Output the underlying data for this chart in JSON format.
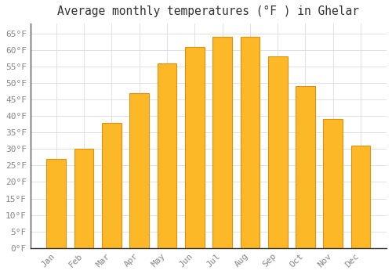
{
  "title": "Average monthly temperatures (°F ) in Ghelar",
  "months": [
    "Jan",
    "Feb",
    "Mar",
    "Apr",
    "May",
    "Jun",
    "Jul",
    "Aug",
    "Sep",
    "Oct",
    "Nov",
    "Dec"
  ],
  "values": [
    27,
    30,
    38,
    47,
    56,
    61,
    64,
    64,
    58,
    49,
    39,
    31
  ],
  "bar_color": "#FDB827",
  "bar_edge_color": "#E09010",
  "background_color": "#FFFFFF",
  "grid_color": "#DCDCDC",
  "ylim": [
    0,
    68
  ],
  "yticks": [
    0,
    5,
    10,
    15,
    20,
    25,
    30,
    35,
    40,
    45,
    50,
    55,
    60,
    65
  ],
  "ylabel_format": "°F",
  "title_fontsize": 10.5,
  "tick_fontsize": 8,
  "font_family": "monospace",
  "tick_color": "#888888",
  "spine_color": "#888888",
  "left_spine_color": "#555555",
  "bottom_spine_color": "#333333"
}
